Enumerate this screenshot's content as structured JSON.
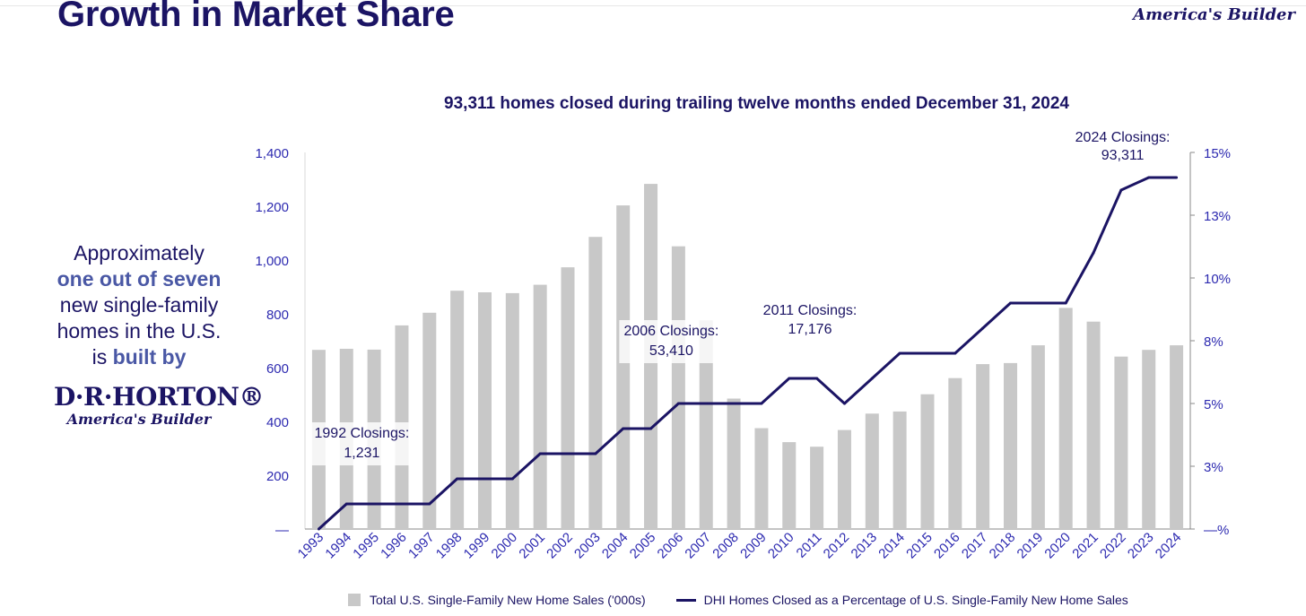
{
  "header": {
    "title": "Growth in Market Share",
    "tagline": "America's Builder"
  },
  "sidebar": {
    "line1": "Approximately",
    "line2": "one out of seven",
    "line3": "new single-family",
    "line4": "homes in the U.S.",
    "line5_prefix": "is ",
    "line5_highlight": "built by",
    "brand_name": "D·R·HORTON®",
    "brand_tagline": "America's Builder"
  },
  "colors": {
    "title": "#1b1464",
    "bar": "#c8c8c8",
    "line": "#1b1464",
    "axis_text": "#2d2ab0",
    "highlight": "#4a58a5"
  },
  "chart_data": {
    "type": "bar",
    "title": "93,311 homes closed during trailing twelve months ended December 31, 2024",
    "categories": [
      "1993",
      "1994",
      "1995",
      "1996",
      "1997",
      "1998",
      "1999",
      "2000",
      "2001",
      "2002",
      "2003",
      "2004",
      "2005",
      "2006",
      "2007",
      "2008",
      "2009",
      "2010",
      "2011",
      "2012",
      "2013",
      "2014",
      "2015",
      "2016",
      "2017",
      "2018",
      "2019",
      "2020",
      "2021",
      "2022",
      "2023",
      "2024"
    ],
    "series": [
      {
        "name": "Total U.S. Single-Family New Home Sales ('000s)",
        "type": "bar",
        "axis": "left",
        "values": [
          666,
          670,
          667,
          757,
          804,
          886,
          880,
          877,
          908,
          973,
          1086,
          1203,
          1283,
          1051,
          776,
          485,
          375,
          323,
          306,
          368,
          429,
          437,
          501,
          561,
          613,
          617,
          683,
          822,
          771,
          641,
          666,
          683
        ]
      },
      {
        "name": "DHI Homes Closed as a Percentage of U.S. Single-Family New Home Sales",
        "type": "line",
        "axis": "right",
        "values": [
          0.0,
          1.0,
          1.0,
          1.0,
          1.0,
          2.0,
          2.0,
          2.0,
          3.0,
          3.0,
          3.0,
          4.0,
          4.0,
          5.0,
          5.0,
          5.0,
          5.0,
          6.0,
          6.0,
          5.0,
          6.0,
          7.0,
          7.0,
          7.0,
          8.0,
          9.0,
          9.0,
          9.0,
          11.0,
          13.5,
          14.0,
          14.0
        ]
      }
    ],
    "y_left": {
      "range": [
        0,
        1400
      ],
      "ticks": [
        0,
        200,
        400,
        600,
        800,
        1000,
        1200,
        1400
      ],
      "tick_labels": [
        "—",
        "200",
        "400",
        "600",
        "800",
        "1,000",
        "1,200",
        "1,400"
      ]
    },
    "y_right": {
      "range": [
        0,
        15
      ],
      "ticks": [
        0,
        2.5,
        5,
        7.5,
        10,
        12.5,
        15
      ],
      "tick_labels": [
        "—%",
        "3%",
        "5%",
        "8%",
        "10%",
        "13%",
        "15%"
      ]
    },
    "annotations": [
      {
        "category": "1993",
        "lines": [
          "1992 Closings:",
          "1,231"
        ]
      },
      {
        "category": "2006",
        "lines": [
          "2006 Closings:",
          "53,410"
        ]
      },
      {
        "category": "2011",
        "lines": [
          "2011 Closings:",
          "17,176"
        ]
      },
      {
        "category": "2024",
        "lines": [
          "2024 Closings:",
          "93,311"
        ]
      }
    ],
    "grid": false,
    "legend_position": "bottom"
  }
}
